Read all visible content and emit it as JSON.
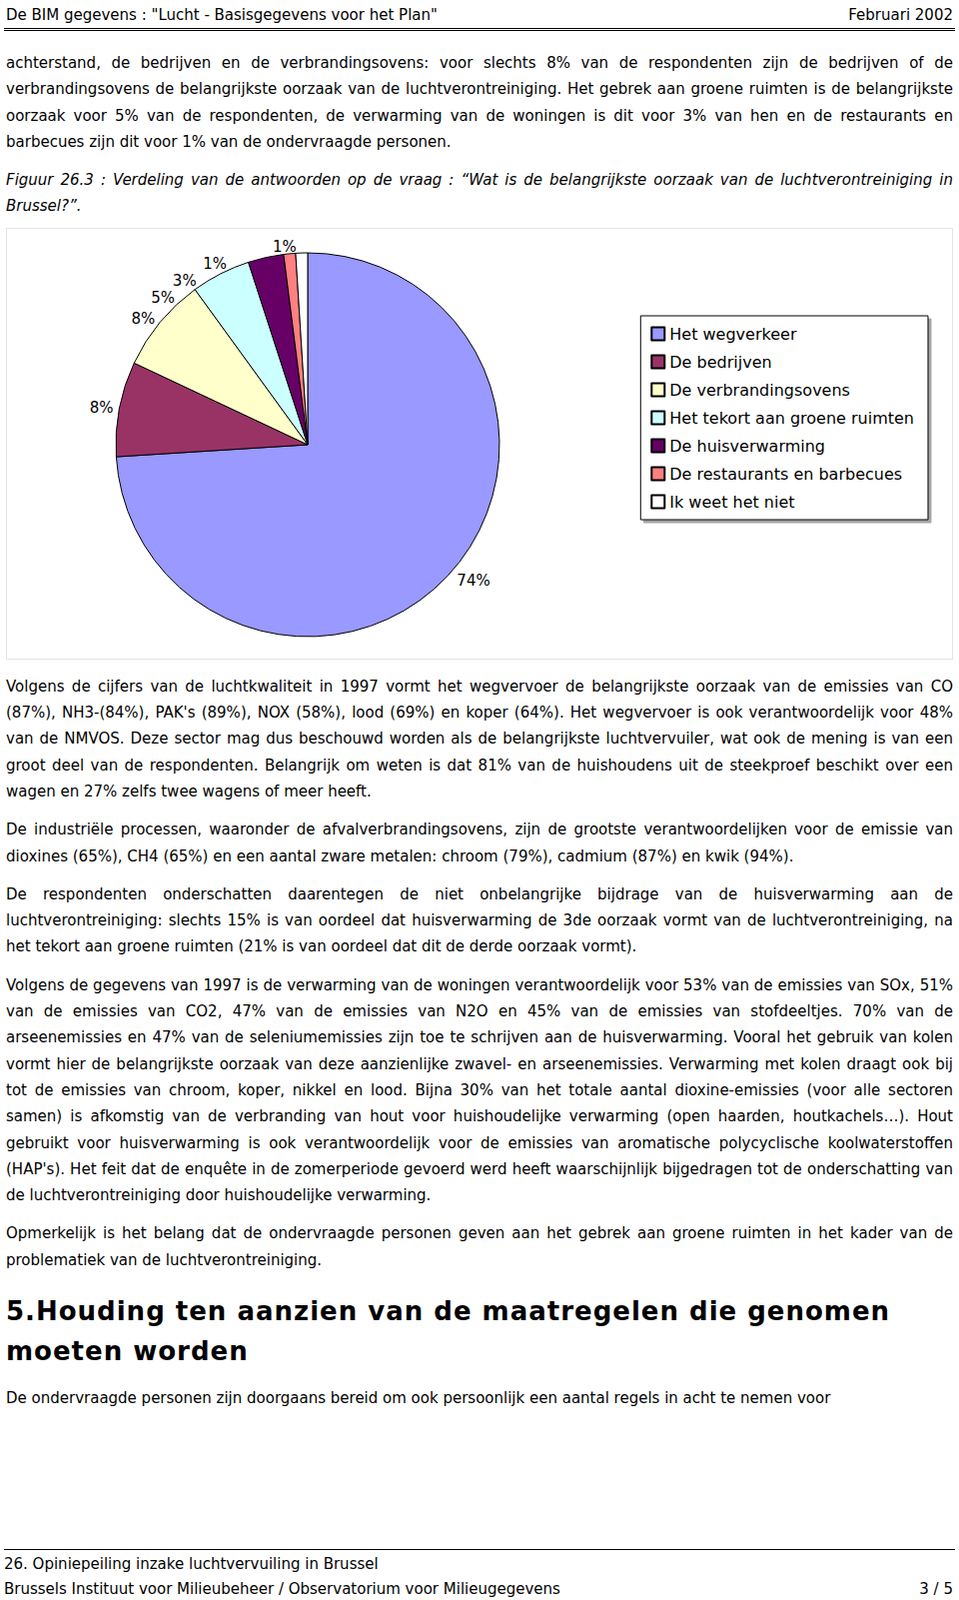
{
  "header": {
    "title": "De BIM gegevens : \"Lucht - Basisgegevens voor het Plan\"",
    "date": "Februari 2002"
  },
  "paragraphs_before": [
    "achterstand, de bedrijven en de verbrandingsovens: voor slechts 8% van de respondenten zijn de bedrijven of de verbrandingsovens de belangrijkste oorzaak van de luchtverontreiniging. Het gebrek aan groene ruimten is de belangrijkste oorzaak voor 5% van de respondenten, de verwarming van de woningen is dit voor 3% van hen en de restaurants en barbecues zijn dit voor 1% van de ondervraagde personen."
  ],
  "figure_caption": "Figuur 26.3 : Verdeling van de antwoorden op de vraag : “Wat is de belangrijkste oorzaak van de luchtverontreiniging in Brussel?”.",
  "chart_data": {
    "type": "pie",
    "categories": [
      "Het wegverkeer",
      "De bedrijven",
      "De verbrandingsovens",
      "Het tekort aan groene ruimten",
      "De huisverwarming",
      "De restaurants en barbecues",
      "Ik weet het niet"
    ],
    "values": [
      74,
      8,
      8,
      5,
      3,
      1,
      1
    ],
    "value_labels": [
      "74%",
      "8%",
      "8%",
      "5%",
      "3%",
      "1%",
      "1%"
    ],
    "colors": [
      "#9999ff",
      "#993366",
      "#ffffcc",
      "#ccffff",
      "#660066",
      "#ff8080",
      "#ffffff"
    ],
    "data_labels": true,
    "legend": "right"
  },
  "paragraphs_after": [
    "Volgens de cijfers van de luchtkwaliteit in 1997 vormt het wegvervoer de belangrijkste oorzaak van de emissies van CO (87%), NH3-(84%), PAK's (89%), NOX (58%), lood (69%) en koper (64%). Het wegvervoer is ook verantwoordelijk voor 48% van de NMVOS. Deze sector mag dus beschouwd worden als de belangrijkste luchtvervuiler, wat ook de mening is van een groot deel van de respondenten. Belangrijk om weten is dat 81% van de huishoudens uit de steekproef beschikt over een wagen en 27% zelfs twee wagens of meer heeft.",
    "De industriële processen, waaronder de afvalverbrandingsovens, zijn de grootste verantwoordelijken voor de emissie van dioxines (65%), CH4 (65%) en een aantal zware metalen: chroom (79%), cadmium (87%) en kwik (94%).",
    "De respondenten onderschatten daarentegen de niet onbelangrijke bijdrage van de huisverwarming aan de luchtverontreiniging: slechts 15% is van oordeel dat huisverwarming de 3de oorzaak vormt van de luchtverontreiniging, na het tekort aan groene ruimten (21% is van oordeel dat dit de derde oorzaak vormt).",
    "Volgens de gegevens van 1997 is de verwarming van de woningen verantwoordelijk voor 53% van de emissies van SOx, 51% van de emissies van CO2, 47% van de emissies van N2O en 45% van de emissies van stofdeeltjes. 70% van de arseenemissies en 47% van de seleniumemissies zijn toe te schrijven aan de huisverwarming. Vooral het gebruik van kolen vormt hier de belangrijkste oorzaak van deze aanzienlijke zwavel- en arseenemissies. Verwarming met kolen draagt ook bij tot de emissies van chroom, koper, nikkel en lood. Bijna 30% van het totale aantal dioxine-emissies (voor alle sectoren samen) is afkomstig van de verbranding van hout voor huishoudelijke verwarming (open haarden, houtkachels…). Hout gebruikt voor huisverwarming is ook verantwoordelijk voor de emissies van aromatische polycyclische koolwaterstoffen (HAP's). Het feit dat de enquête in de zomerperiode gevoerd werd heeft waarschijnlijk bijgedragen tot de onderschatting van de luchtverontreiniging door huishoudelijke verwarming.",
    "Opmerkelijk is het belang dat de ondervraagde personen geven aan het gebrek aan groene ruimten in het kader van de problematiek van de luchtverontreiniging."
  ],
  "section_heading": {
    "number": "5.",
    "title": "Houding ten aanzien van de maatregelen die genomen moeten worden"
  },
  "paragraphs_end": [
    "De ondervraagde personen zijn doorgaans bereid om ook persoonlijk een aantal regels in acht te nemen voor"
  ],
  "footer": {
    "chapter": "26. Opiniepeiling inzake luchtvervuiling in Brussel",
    "institute": "Brussels Instituut voor Milieubeheer / Observatorium voor Milieugegevens",
    "page": "3 / 5"
  }
}
